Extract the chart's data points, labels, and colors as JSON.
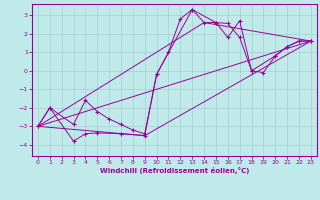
{
  "bg_color": "#c0eaea",
  "grid_color": "#aad4d4",
  "line_color": "#990099",
  "xlabel": "Windchill (Refroidissement éolien,°C)",
  "xlim": [
    -0.5,
    23.5
  ],
  "ylim": [
    -4.6,
    3.6
  ],
  "xticks": [
    0,
    1,
    2,
    3,
    4,
    5,
    6,
    7,
    8,
    9,
    10,
    11,
    12,
    13,
    14,
    15,
    16,
    17,
    18,
    19,
    20,
    21,
    22,
    23
  ],
  "yticks": [
    -4,
    -3,
    -2,
    -1,
    0,
    1,
    2,
    3
  ],
  "series1_x": [
    0,
    1,
    3,
    4,
    5,
    6,
    7,
    8,
    9,
    10,
    11,
    12,
    13,
    14,
    15,
    16,
    17,
    18,
    19,
    20,
    21,
    22,
    23
  ],
  "series1_y": [
    -3.0,
    -2.0,
    -2.9,
    -1.6,
    -2.2,
    -2.6,
    -2.9,
    -3.2,
    -3.4,
    -0.2,
    1.0,
    2.8,
    3.3,
    2.6,
    2.6,
    1.8,
    2.7,
    0.0,
    -0.1,
    0.8,
    1.3,
    1.6,
    1.6
  ],
  "series2_x": [
    0,
    1,
    3,
    4,
    5,
    7,
    9,
    10,
    13,
    15,
    16,
    17,
    18,
    20,
    21,
    22,
    23
  ],
  "series2_y": [
    -3.0,
    -2.0,
    -3.8,
    -3.4,
    -3.35,
    -3.4,
    -3.5,
    -0.2,
    3.3,
    2.6,
    2.55,
    1.8,
    0.0,
    0.8,
    1.3,
    1.6,
    1.6
  ],
  "line3_x": [
    0,
    23
  ],
  "line3_y": [
    -3.0,
    1.6
  ],
  "line4_x": [
    0,
    9,
    23
  ],
  "line4_y": [
    -3.0,
    -3.5,
    1.6
  ],
  "line5_x": [
    0,
    14,
    23
  ],
  "line5_y": [
    -3.0,
    2.6,
    1.6
  ]
}
